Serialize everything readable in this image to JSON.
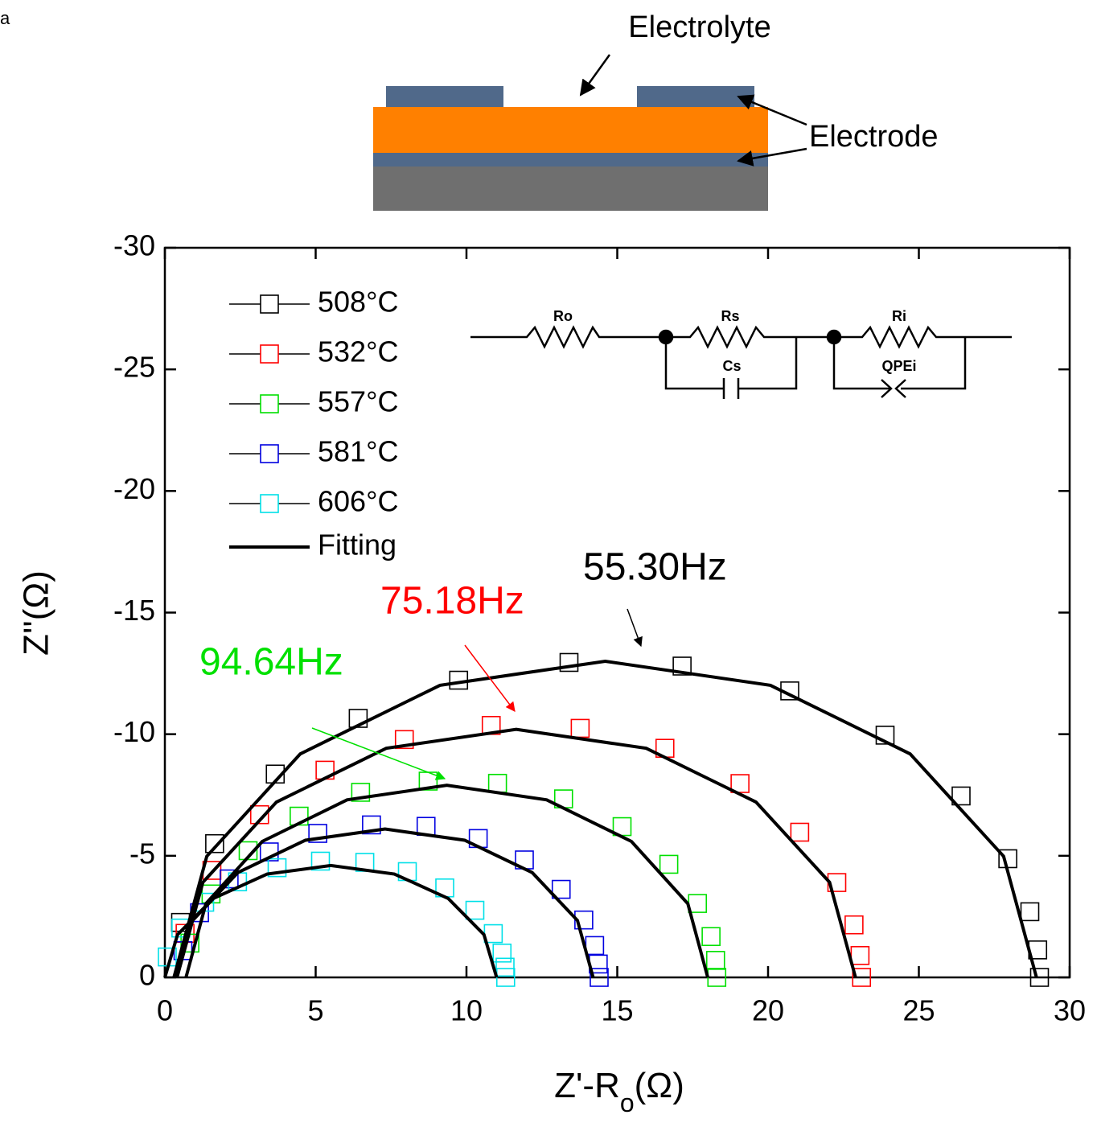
{
  "panel_label": "a",
  "schematic": {
    "electrolyte": "Electrolyte",
    "electrode": "Electrode"
  },
  "circuit": {
    "labels": [
      "Ro",
      "Rs",
      "Ri",
      "Cs",
      "QPEi"
    ]
  },
  "chart_data": {
    "type": "scatter",
    "xlabel": [
      "Z'-R",
      "o",
      "(Ω)"
    ],
    "ylabel": "Z''(Ω)",
    "xlim": [
      0,
      30
    ],
    "xticks": [
      0,
      5,
      10,
      15,
      20,
      25,
      30
    ],
    "ylim": [
      0,
      -30
    ],
    "yticks": [
      0,
      -5,
      -10,
      -15,
      -20,
      -25,
      -30
    ],
    "legend": "upper left",
    "series": [
      {
        "name": "508°C",
        "color": "#000000",
        "x": [
          0.52,
          1.65,
          3.66,
          6.41,
          9.74,
          13.4,
          17.15,
          20.72,
          23.88,
          26.4,
          27.95,
          28.68,
          28.94,
          29.0
        ],
        "y": [
          -2.26,
          -5.5,
          -8.36,
          -10.65,
          -12.22,
          -12.95,
          -12.8,
          -11.78,
          -9.96,
          -7.46,
          -4.88,
          -2.7,
          -1.13,
          0
        ]
      },
      {
        "name": "532°C",
        "color": "#ff0000",
        "x": [
          0.67,
          1.56,
          3.14,
          5.31,
          7.94,
          10.82,
          13.77,
          16.58,
          19.07,
          21.05,
          22.28,
          22.85,
          23.05,
          23.1
        ],
        "y": [
          -1.81,
          -4.4,
          -6.69,
          -8.52,
          -9.78,
          -10.36,
          -10.24,
          -9.42,
          -7.97,
          -5.97,
          -3.9,
          -2.16,
          -0.9,
          0
        ]
      },
      {
        "name": "557°C",
        "color": "#00e000",
        "x": [
          0.83,
          1.53,
          2.76,
          4.45,
          6.49,
          8.73,
          11.03,
          13.22,
          15.16,
          16.71,
          17.66,
          18.11,
          18.26,
          18.3
        ],
        "y": [
          -1.41,
          -3.43,
          -5.21,
          -6.63,
          -7.61,
          -8.07,
          -7.98,
          -7.34,
          -6.2,
          -4.65,
          -3.04,
          -1.68,
          -0.7,
          0
        ]
      },
      {
        "name": "581°C",
        "color": "#0000e0",
        "x": [
          0.6,
          1.15,
          2.13,
          3.46,
          5.07,
          6.85,
          8.66,
          10.39,
          11.92,
          13.14,
          13.89,
          14.25,
          14.37,
          14.4
        ],
        "y": [
          -1.1,
          -2.66,
          -4.05,
          -5.16,
          -5.92,
          -6.27,
          -6.21,
          -5.71,
          -4.83,
          -3.62,
          -2.36,
          -1.31,
          -0.55,
          0
        ]
      },
      {
        "name": "606°C",
        "color": "#00e0e8",
        "x": [
          0.08,
          0.53,
          1.32,
          2.41,
          3.72,
          5.16,
          6.63,
          8.04,
          9.28,
          10.28,
          10.89,
          11.18,
          11.28,
          11.3
        ],
        "y": [
          -0.84,
          -2.03,
          -3.09,
          -3.93,
          -4.51,
          -4.78,
          -4.73,
          -4.35,
          -3.68,
          -2.76,
          -1.8,
          -1.0,
          -0.42,
          0
        ]
      }
    ],
    "fit": {
      "name": "Fitting",
      "color": "#000000",
      "curves": [
        {
          "x": [
            0.3,
            1.39,
            4.49,
            9.12,
            14.6,
            20.08,
            24.71,
            27.81,
            28.9
          ],
          "y": [
            0,
            -4.98,
            -9.19,
            -12.01,
            -13,
            -12.01,
            -9.19,
            -4.98,
            0
          ]
        },
        {
          "x": [
            0.4,
            1.26,
            3.7,
            7.34,
            11.65,
            15.96,
            19.6,
            22.04,
            22.9
          ],
          "y": [
            0,
            -3.91,
            -7.21,
            -9.42,
            -10.2,
            -9.42,
            -7.21,
            -3.91,
            0
          ]
        },
        {
          "x": [
            0.7,
            1.36,
            3.23,
            6.04,
            9.35,
            12.66,
            15.47,
            17.34,
            18.0
          ],
          "y": [
            0,
            -3.03,
            -5.59,
            -7.3,
            -7.9,
            -7.3,
            -5.59,
            -3.03,
            0
          ]
        },
        {
          "x": [
            0.4,
            0.92,
            2.42,
            4.66,
            7.3,
            9.94,
            12.18,
            13.68,
            14.2
          ],
          "y": [
            0,
            -2.34,
            -4.31,
            -5.64,
            -6.1,
            -5.64,
            -4.31,
            -2.34,
            0
          ]
        },
        {
          "x": [
            0,
            0.42,
            1.61,
            3.39,
            5.5,
            7.61,
            9.39,
            10.58,
            11.0
          ],
          "y": [
            0,
            -1.76,
            -3.25,
            -4.25,
            -4.6,
            -4.25,
            -3.25,
            -1.76,
            0
          ]
        }
      ]
    },
    "annotations": [
      {
        "text": "55.30Hz",
        "color": "#000000"
      },
      {
        "text": "75.18Hz",
        "color": "#ff0000"
      },
      {
        "text": "94.64Hz",
        "color": "#00e000"
      }
    ]
  }
}
